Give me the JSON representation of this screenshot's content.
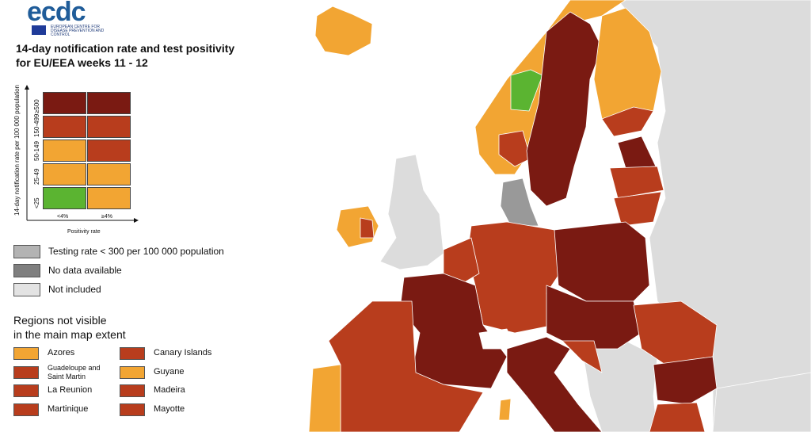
{
  "header": {
    "logo": "ecdc",
    "agency": "EUROPEAN CENTRE FOR DISEASE PREVENTION AND CONTROL",
    "title_lines": [
      "14-day notification rate and test positivity",
      "for EU/EEA weeks 11 - 12"
    ]
  },
  "matrix": {
    "y_label": "14-day notification rate per 100 000 population",
    "x_label": "Positivity rate",
    "columns": [
      "<4%",
      "≥4%"
    ],
    "rows": [
      {
        "label": "≥500",
        "colors": [
          "#7a1a12",
          "#7a1a12"
        ]
      },
      {
        "label": "150-499",
        "colors": [
          "#b83d1d",
          "#b83d1d"
        ]
      },
      {
        "label": "50-149",
        "colors": [
          "#f2a533",
          "#b83d1d"
        ]
      },
      {
        "label": "25-49",
        "colors": [
          "#f2a533",
          "#f2a533"
        ]
      },
      {
        "label": "<25",
        "colors": [
          "#5bb431",
          "#f2a533"
        ]
      }
    ]
  },
  "legend": [
    {
      "label": "Testing rate < 300 per 100 000 population",
      "color": "#b3b3b3"
    },
    {
      "label": "No data available",
      "color": "#7f7f7f"
    },
    {
      "label": "Not included",
      "color": "#e3e3e3"
    }
  ],
  "regions": {
    "title_lines": [
      "Regions not visible",
      "in the main map extent"
    ],
    "items": [
      {
        "name": "Azores",
        "color": "#f2a533"
      },
      {
        "name": "Canary Islands",
        "color": "#b83d1d"
      },
      {
        "name": "Guadeloupe and Saint Martin",
        "color": "#b83d1d"
      },
      {
        "name": "Guyane",
        "color": "#f2a533"
      },
      {
        "name": "La Reunion",
        "color": "#b83d1d"
      },
      {
        "name": "Madeira",
        "color": "#b83d1d"
      },
      {
        "name": "Martinique",
        "color": "#b83d1d"
      },
      {
        "name": "Mayotte",
        "color": "#b83d1d"
      }
    ]
  }
}
